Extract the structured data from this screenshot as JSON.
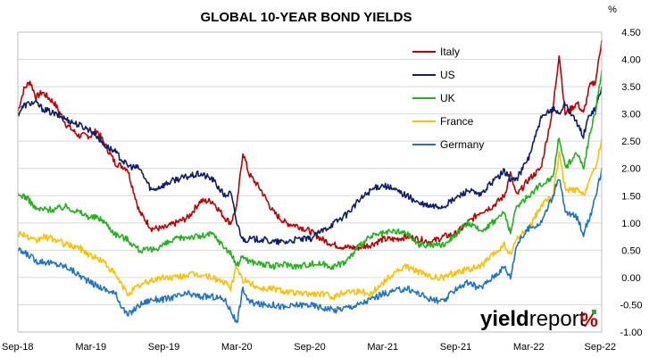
{
  "chart_data": {
    "type": "line",
    "title": "GLOBAL 10-YEAR BOND YIELDS",
    "yunit": "%",
    "xlabel": "",
    "ylabel": "",
    "ylim": [
      -1.0,
      4.5
    ],
    "yticks": [
      "4.50",
      "4.00",
      "3.50",
      "3.00",
      "2.50",
      "2.00",
      "1.50",
      "1.00",
      "0.50",
      "0.00",
      "-0.50",
      "-1.00"
    ],
    "ytick_values": [
      4.5,
      4.0,
      3.5,
      3.0,
      2.5,
      2.0,
      1.5,
      1.0,
      0.5,
      0.0,
      -0.5,
      -1.0
    ],
    "xticks": [
      "Sep-18",
      "Mar-19",
      "Sep-19",
      "Mar-20",
      "Sep-20",
      "Mar-21",
      "Sep-21",
      "Mar-22",
      "Sep-22"
    ],
    "xtick_months": [
      0,
      6,
      12,
      18,
      24,
      30,
      36,
      42,
      48
    ],
    "x": [
      0,
      0.5,
      1,
      1.5,
      2,
      3,
      4,
      5,
      6,
      6.5,
      7,
      8,
      9,
      10,
      11,
      12,
      13,
      14,
      15,
      16,
      17,
      17.5,
      18,
      18.5,
      19,
      20,
      21,
      22,
      23,
      24,
      25,
      26,
      27,
      28,
      29,
      30,
      31,
      32,
      33,
      34,
      35,
      36,
      37,
      38,
      39,
      40,
      40.5,
      41,
      42,
      43,
      44,
      44.5,
      45,
      46,
      46.5,
      47,
      47.5,
      48
    ],
    "legend_position": "top-right",
    "grid": true,
    "series": [
      {
        "name": "Italy",
        "color": "#c00000",
        "values": [
          3.05,
          3.45,
          3.6,
          3.3,
          3.4,
          3.2,
          2.8,
          2.6,
          2.6,
          2.7,
          2.5,
          2.1,
          2.0,
          1.2,
          0.9,
          0.9,
          1.0,
          1.1,
          1.4,
          1.4,
          1.1,
          1.0,
          1.3,
          2.3,
          1.9,
          1.6,
          1.2,
          1.0,
          0.95,
          0.85,
          0.7,
          0.6,
          0.55,
          0.55,
          0.6,
          0.7,
          0.7,
          0.75,
          0.7,
          0.65,
          0.75,
          0.8,
          1.0,
          1.2,
          1.3,
          1.5,
          1.9,
          1.5,
          1.8,
          2.0,
          3.1,
          4.1,
          3.0,
          3.2,
          3.0,
          3.5,
          3.6,
          4.35
        ]
      },
      {
        "name": "US",
        "color": "#0d1f6b",
        "values": [
          3.0,
          3.15,
          3.2,
          3.2,
          3.1,
          3.0,
          2.9,
          2.8,
          2.7,
          2.6,
          2.45,
          2.3,
          2.05,
          2.0,
          1.6,
          1.7,
          1.8,
          1.85,
          1.9,
          1.8,
          1.5,
          1.55,
          1.0,
          0.7,
          0.7,
          0.7,
          0.65,
          0.65,
          0.7,
          0.7,
          0.85,
          1.0,
          1.15,
          1.4,
          1.6,
          1.7,
          1.6,
          1.5,
          1.35,
          1.3,
          1.3,
          1.45,
          1.6,
          1.5,
          1.75,
          1.95,
          1.8,
          1.8,
          2.2,
          2.9,
          3.1,
          3.0,
          3.2,
          2.8,
          2.6,
          3.0,
          3.1,
          3.5
        ]
      },
      {
        "name": "UK",
        "color": "#22b21b",
        "values": [
          1.5,
          1.5,
          1.4,
          1.25,
          1.25,
          1.25,
          1.3,
          1.2,
          1.1,
          1.1,
          1.05,
          0.8,
          0.7,
          0.5,
          0.5,
          0.6,
          0.7,
          0.75,
          0.75,
          0.8,
          0.55,
          0.45,
          0.2,
          0.4,
          0.3,
          0.25,
          0.2,
          0.25,
          0.2,
          0.25,
          0.25,
          0.2,
          0.3,
          0.55,
          0.75,
          0.8,
          0.85,
          0.8,
          0.6,
          0.6,
          0.6,
          0.8,
          1.0,
          0.85,
          1.0,
          1.2,
          0.8,
          1.3,
          1.5,
          1.7,
          1.85,
          2.6,
          2.0,
          2.3,
          2.0,
          2.6,
          3.05,
          3.8
        ]
      },
      {
        "name": "France",
        "color": "#ffc000",
        "values": [
          0.8,
          0.8,
          0.7,
          0.65,
          0.75,
          0.7,
          0.6,
          0.55,
          0.4,
          0.35,
          0.3,
          0.05,
          -0.3,
          -0.15,
          -0.05,
          0.0,
          0.0,
          0.05,
          0.05,
          0.0,
          -0.1,
          -0.2,
          0.2,
          -0.05,
          -0.1,
          -0.2,
          -0.2,
          -0.25,
          -0.3,
          -0.3,
          -0.3,
          -0.35,
          -0.25,
          -0.25,
          -0.3,
          -0.1,
          0.1,
          0.2,
          0.1,
          0.0,
          0.0,
          0.1,
          0.15,
          0.2,
          0.4,
          0.6,
          0.4,
          0.7,
          0.9,
          1.3,
          1.5,
          2.3,
          1.6,
          1.6,
          1.5,
          1.8,
          2.0,
          2.55
        ]
      },
      {
        "name": "Germany",
        "color": "#1f74c0",
        "values": [
          0.5,
          0.45,
          0.4,
          0.3,
          0.3,
          0.25,
          0.2,
          0.05,
          -0.1,
          -0.15,
          -0.2,
          -0.3,
          -0.7,
          -0.5,
          -0.4,
          -0.4,
          -0.35,
          -0.3,
          -0.35,
          -0.35,
          -0.4,
          -0.6,
          -0.85,
          -0.2,
          -0.45,
          -0.5,
          -0.5,
          -0.55,
          -0.5,
          -0.5,
          -0.55,
          -0.6,
          -0.55,
          -0.5,
          -0.4,
          -0.3,
          -0.25,
          -0.2,
          -0.3,
          -0.4,
          -0.45,
          -0.2,
          -0.1,
          -0.2,
          0.0,
          0.2,
          0.0,
          0.6,
          0.9,
          1.0,
          1.5,
          1.85,
          1.2,
          1.1,
          0.8,
          1.1,
          1.45,
          2.0
        ]
      }
    ]
  },
  "brand": {
    "name": "yieldreport",
    "first": "yield",
    "second": "report",
    "mark": "%"
  }
}
